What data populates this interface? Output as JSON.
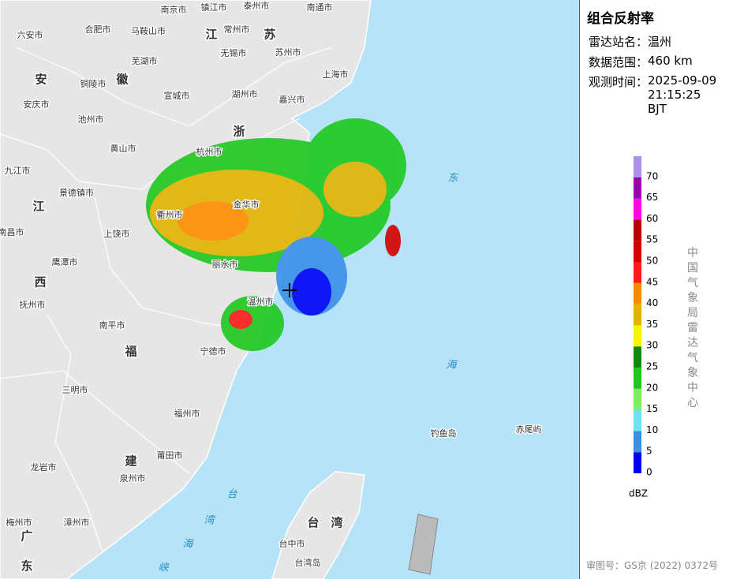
{
  "panel": {
    "title": "组合反射率",
    "rows": [
      {
        "label": "雷达站名：",
        "value": "温州"
      },
      {
        "label": "数据范围：",
        "value": "460 km"
      },
      {
        "label": "观测时间：",
        "value": "2025-09-09 21:15:25 BJT"
      }
    ],
    "legend": {
      "ticks": [
        0,
        5,
        10,
        15,
        20,
        25,
        30,
        35,
        40,
        45,
        50,
        55,
        60,
        65,
        70
      ],
      "colors": [
        "#0000f6",
        "#3a8fe8",
        "#6ce4ec",
        "#7cf05a",
        "#1ec81e",
        "#0a8c0a",
        "#f5f500",
        "#e2b400",
        "#ff8c00",
        "#ff1a1a",
        "#d40000",
        "#b80000",
        "#ff00f0",
        "#9a00b0",
        "#ac90ec"
      ],
      "unit": "dBZ"
    },
    "credit": "中国气象局雷达气象中心",
    "approval": "审图号：GS京 (2022) 0372号"
  },
  "map": {
    "city_labels": [
      "六安市",
      "合肥市",
      "马鞍山市",
      "南京市",
      "镇江市",
      "泰州市",
      "南通市",
      "常州市",
      "无锡市",
      "苏州市",
      "芜湖市",
      "铜陵市",
      "宣城市",
      "湖州市",
      "嘉兴市",
      "上海市",
      "安庆市",
      "池州市",
      "黄山市",
      "杭州市",
      "九江市",
      "景德镇市",
      "金华市",
      "衢州市",
      "南昌市",
      "上饶市",
      "鹰潭市",
      "丽水市",
      "抚州市",
      "温州市",
      "南平市",
      "宁德市",
      "三明市",
      "福州市",
      "莆田市",
      "龙岩市",
      "泉州市",
      "漳州市",
      "梅州市",
      "台中市",
      "台湾岛",
      "钓鱼岛",
      "赤尾屿"
    ],
    "province_labels": [
      "安",
      "徽",
      "江",
      "苏",
      "浙",
      "江",
      "西",
      "福",
      "建",
      "台",
      "湾",
      "广",
      "东"
    ],
    "sea_labels": [
      "东",
      "海",
      "台",
      "湾",
      "海",
      "峡"
    ]
  }
}
